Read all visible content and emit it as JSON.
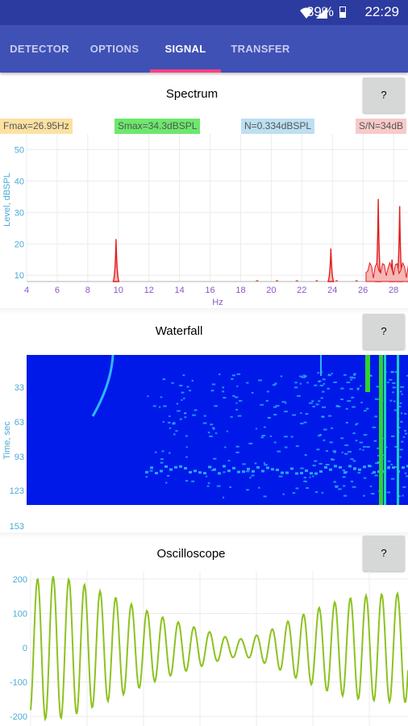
{
  "statusbar": {
    "battery": "39%",
    "time": "22:29",
    "icons": [
      "wifi-icon",
      "signal-icon",
      "battery-icon"
    ]
  },
  "tabs": [
    {
      "label": "DETECTOR",
      "active": false
    },
    {
      "label": "OPTIONS",
      "active": false
    },
    {
      "label": "SIGNAL",
      "active": true
    },
    {
      "label": "TRANSFER",
      "active": false
    }
  ],
  "spectrum": {
    "title": "Spectrum",
    "help": "?",
    "labels": {
      "fmax": "Fmax=26.95Hz",
      "smax": "Smax=34.3dBSPL",
      "noise": "N=0.334dBSPL",
      "snr": "S/N=34dB"
    },
    "label_colors": {
      "fmax": "#fce1a2",
      "smax": "#6ce86c",
      "noise": "#bcdff2",
      "snr": "#f8c9c9"
    }
  },
  "waterfall": {
    "title": "Waterfall",
    "help": "?"
  },
  "oscilloscope": {
    "title": "Oscilloscope",
    "help": "?"
  },
  "chart_data": [
    {
      "type": "line",
      "xlabel": "Hz",
      "ylabel": "Level, dBSPL",
      "xlim": [
        4,
        30
      ],
      "ylim": [
        8,
        55
      ],
      "x_ticks": [
        4,
        6,
        8,
        10,
        12,
        14,
        16,
        18,
        20,
        22,
        24,
        26,
        28
      ],
      "y_ticks": [
        10,
        20,
        30,
        40,
        50
      ],
      "series": [
        {
          "color": "#e21b1b",
          "peaks": [
            {
              "x": 9.85,
              "y": 21.5
            },
            {
              "x": 23.9,
              "y": 18.5
            },
            {
              "x": 27.0,
              "y": 34.3
            },
            {
              "x": 27.9,
              "y": 15
            },
            {
              "x": 28.4,
              "y": 32
            },
            {
              "x": 29.1,
              "y": 14
            }
          ]
        }
      ]
    },
    {
      "type": "heatmap",
      "ylabel": "Time, sec",
      "y_ticks": [
        33,
        63,
        93,
        123,
        153
      ],
      "colorscale": [
        "#0019e8",
        "#2fb6ff",
        "#17d2b8",
        "#2fd42a"
      ]
    },
    {
      "type": "line",
      "y_ticks": [
        200,
        100,
        0,
        -100,
        -200
      ],
      "ylim": [
        -235,
        235
      ],
      "series": [
        {
          "color": "#8dc21f",
          "peak_amplitudes": [
            195,
            210,
            205,
            190,
            170,
            150,
            130,
            110,
            90,
            75,
            60,
            45,
            30,
            25,
            40,
            60,
            85,
            105,
            125,
            140,
            150,
            155,
            158,
            160
          ]
        }
      ]
    }
  ]
}
